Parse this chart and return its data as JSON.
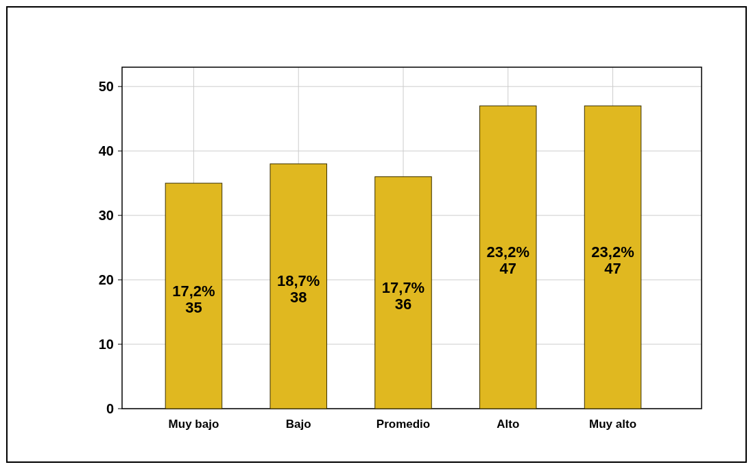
{
  "chart_data": {
    "type": "bar",
    "categories": [
      "Muy bajo",
      "Bajo",
      "Promedio",
      "Alto",
      "Muy alto"
    ],
    "values": [
      35,
      38,
      36,
      47,
      47
    ],
    "value_labels": [
      "17,2%\n35",
      "18,7%\n38",
      "17,7%\n36",
      "23,2%\n47",
      "23,2%\n47"
    ],
    "color": "#e0b820",
    "ylim": [
      0,
      53
    ],
    "yticks": [
      0,
      10,
      20,
      30,
      40,
      50
    ],
    "grid": true
  }
}
